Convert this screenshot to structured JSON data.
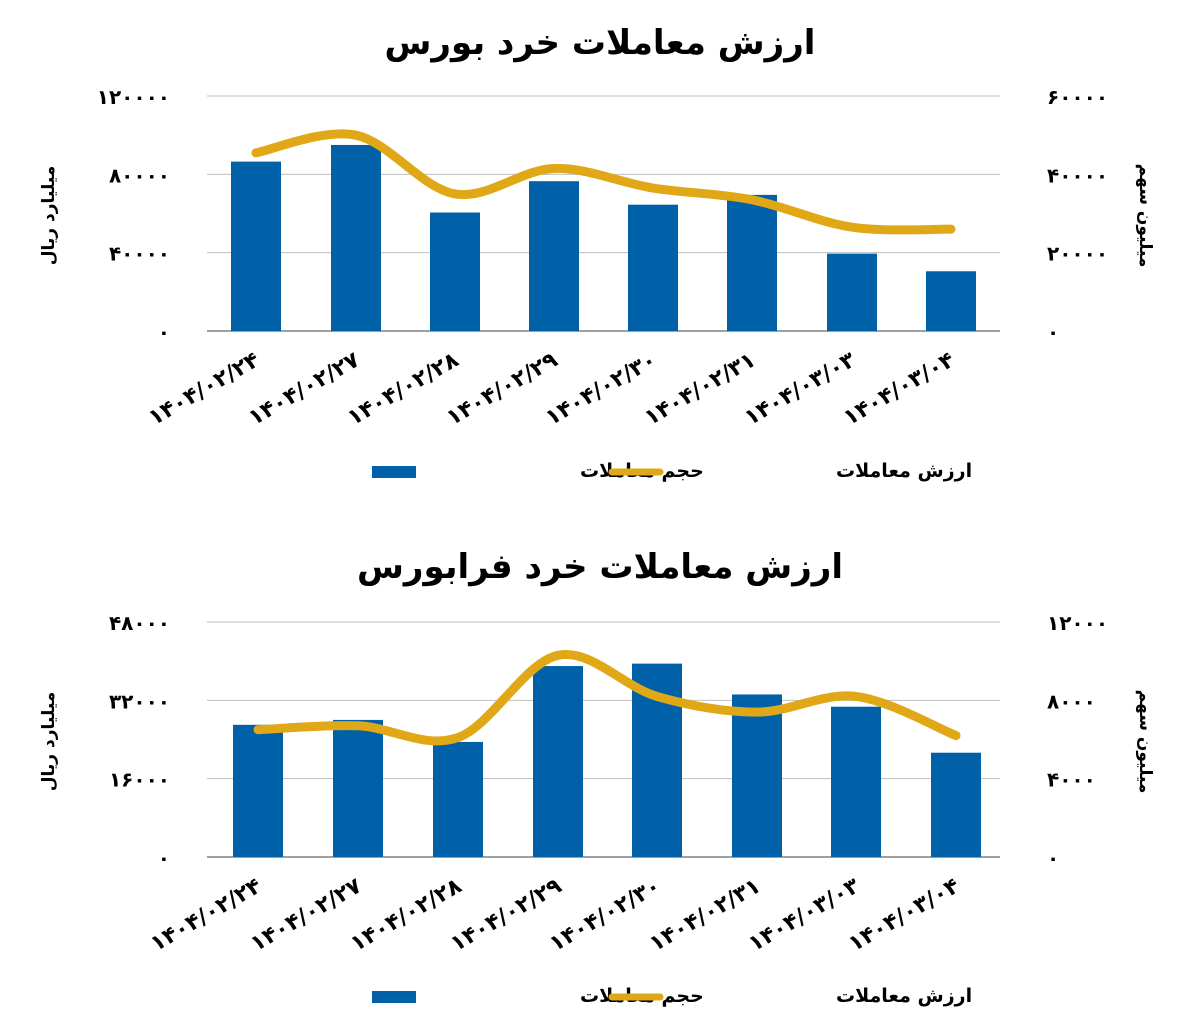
{
  "colors": {
    "bar": "#0060A8",
    "line": "#E0A816",
    "grid": "#BFBFBF",
    "axis": "#808080"
  },
  "chart_data": [
    {
      "type": "bar",
      "title": "ارزش معاملات خرد بورس",
      "categories": [
        "۱۴۰۴/۰۲/۲۴",
        "۱۴۰۴/۰۲/۲۷",
        "۱۴۰۴/۰۲/۲۸",
        "۱۴۰۴/۰۲/۲۹",
        "۱۴۰۴/۰۲/۳۰",
        "۱۴۰۴/۰۲/۳۱",
        "۱۴۰۴/۰۳/۰۳",
        "۱۴۰۴/۰۳/۰۴"
      ],
      "ylabel_left": "میلیارد ریال",
      "ylabel_right": "میلیون سهم",
      "ylim_left": [
        0,
        120000
      ],
      "ylim_right": [
        0,
        60000
      ],
      "yticks_left": [
        "۰",
        "۴۰۰۰۰",
        "۸۰۰۰۰",
        "۱۲۰۰۰۰"
      ],
      "yticks_right": [
        "۰",
        "۲۰۰۰۰",
        "۴۰۰۰۰",
        "۶۰۰۰۰"
      ],
      "grid": true,
      "legend_position": "bottom",
      "series": [
        {
          "name": "حجم معاملات",
          "type": "bar",
          "axis": "left",
          "values": [
            86500,
            95000,
            60500,
            76500,
            64500,
            69500,
            39500,
            30500
          ]
        },
        {
          "name": "ارزش معاملات",
          "type": "line",
          "axis": "right",
          "values": [
            45500,
            50000,
            35000,
            41500,
            36500,
            33500,
            26500,
            26000
          ]
        }
      ]
    },
    {
      "type": "bar",
      "title": "ارزش معاملات خرد فرابورس",
      "categories": [
        "۱۴۰۴/۰۲/۲۴",
        "۱۴۰۴/۰۲/۲۷",
        "۱۴۰۴/۰۲/۲۸",
        "۱۴۰۴/۰۲/۲۹",
        "۱۴۰۴/۰۲/۳۰",
        "۱۴۰۴/۰۲/۳۱",
        "۱۴۰۴/۰۳/۰۳",
        "۱۴۰۴/۰۳/۰۴"
      ],
      "ylabel_left": "میلیارد ریال",
      "ylabel_right": "میلیون سهم",
      "ylim_left": [
        0,
        48000
      ],
      "ylim_right": [
        0,
        12000
      ],
      "yticks_left": [
        "۰",
        "۱۶۰۰۰",
        "۳۲۰۰۰",
        "۴۸۰۰۰"
      ],
      "yticks_right": [
        "۰",
        "۴۰۰۰",
        "۸۰۰۰",
        "۱۲۰۰۰"
      ],
      "grid": true,
      "legend_position": "bottom",
      "series": [
        {
          "name": "حجم معاملات",
          "type": "bar",
          "axis": "left",
          "values": [
            27000,
            28000,
            23500,
            39000,
            39500,
            33200,
            30700,
            21300
          ]
        },
        {
          "name": "ارزش معاملات",
          "type": "line",
          "axis": "right",
          "values": [
            6500,
            6700,
            6100,
            10300,
            8200,
            7400,
            8200,
            6200
          ]
        }
      ]
    }
  ]
}
